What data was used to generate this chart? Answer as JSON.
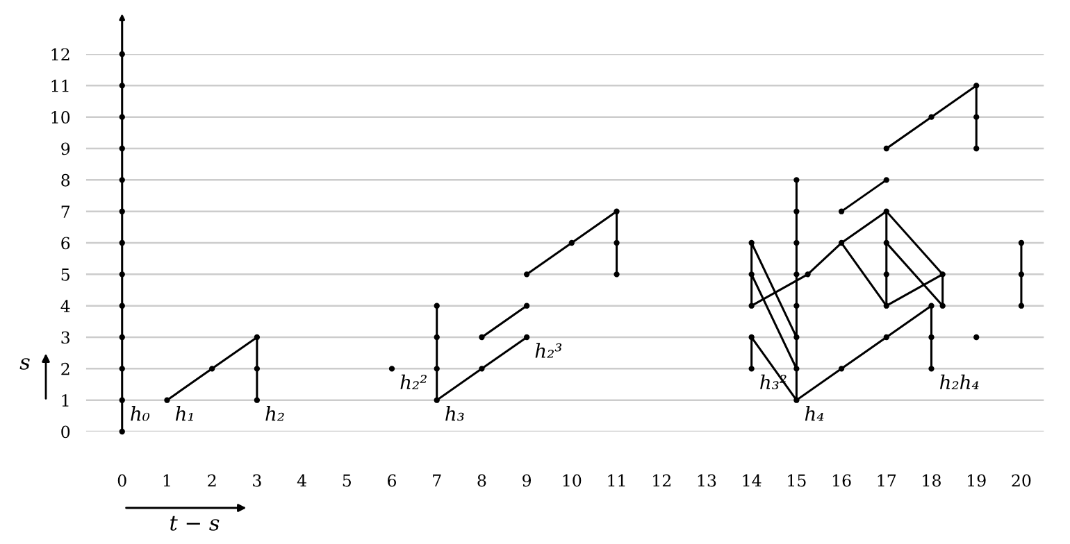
{
  "chart_data": {
    "type": "line",
    "xlabel": "t − s",
    "ylabel": "s",
    "xlim": [
      -0.8,
      20.5
    ],
    "ylim": [
      0,
      12
    ],
    "xticks": [
      0,
      1,
      2,
      3,
      4,
      5,
      6,
      7,
      8,
      9,
      10,
      11,
      12,
      13,
      14,
      15,
      16,
      17,
      18,
      19,
      20
    ],
    "yticks": [
      0,
      1,
      2,
      3,
      4,
      5,
      6,
      7,
      8,
      9,
      10,
      11,
      12
    ],
    "grid": "y",
    "legend": false,
    "marker": "none",
    "line_style": "solid",
    "series": [
      {
        "type": "scatter",
        "color": "#000000",
        "marker": "circle",
        "x": [
          0,
          0,
          0,
          0,
          0,
          0,
          0,
          0,
          0,
          0,
          0,
          0,
          0,
          1,
          2,
          3,
          3,
          3,
          6,
          7,
          7,
          7,
          7,
          8,
          8,
          9,
          9,
          9,
          10,
          11,
          11,
          11,
          14,
          14,
          14,
          14,
          14,
          15,
          15,
          15,
          15,
          15,
          15,
          15,
          15,
          15.25,
          16,
          16,
          16,
          17,
          17,
          17,
          17,
          17,
          17,
          17,
          18,
          18,
          18,
          18,
          18.25,
          18.25,
          19,
          19,
          19,
          19,
          20,
          20,
          20
        ],
        "values": [
          0,
          1,
          2,
          3,
          4,
          5,
          6,
          7,
          8,
          9,
          10,
          11,
          12,
          1,
          2,
          1,
          2,
          3,
          2,
          1,
          2,
          3,
          4,
          2,
          3,
          3,
          4,
          5,
          6,
          5,
          6,
          7,
          2,
          3,
          4,
          5,
          6,
          1,
          2,
          3,
          4,
          5,
          6,
          7,
          8,
          5,
          2,
          6,
          7,
          3,
          4,
          5,
          6,
          7,
          8,
          9,
          2,
          3,
          4,
          10,
          4,
          5,
          3,
          9,
          10,
          11,
          4,
          5,
          6
        ]
      },
      {
        "color": "#000000",
        "x": [
          0,
          0
        ],
        "values": [
          0,
          12
        ]
      },
      {
        "color": "#000000",
        "x": [
          1,
          2,
          3
        ],
        "values": [
          1,
          2,
          3
        ]
      },
      {
        "color": "#000000",
        "x": [
          3,
          3
        ],
        "values": [
          1,
          3
        ]
      },
      {
        "color": "#000000",
        "x": [
          7,
          7
        ],
        "values": [
          1,
          4
        ]
      },
      {
        "color": "#000000",
        "x": [
          7,
          8,
          9
        ],
        "values": [
          1,
          2,
          3
        ]
      },
      {
        "color": "#000000",
        "x": [
          8,
          9
        ],
        "values": [
          3,
          4
        ]
      },
      {
        "color": "#000000",
        "x": [
          9,
          10,
          11
        ],
        "values": [
          5,
          6,
          7
        ]
      },
      {
        "color": "#000000",
        "x": [
          11,
          11
        ],
        "values": [
          5,
          7
        ]
      },
      {
        "color": "#000000",
        "x": [
          14,
          14
        ],
        "values": [
          2,
          3
        ]
      },
      {
        "color": "#000000",
        "x": [
          14,
          14
        ],
        "values": [
          4,
          6
        ]
      },
      {
        "color": "#000000",
        "x": [
          14,
          15
        ],
        "values": [
          3,
          1
        ]
      },
      {
        "color": "#000000",
        "x": [
          14,
          15
        ],
        "values": [
          6,
          3
        ]
      },
      {
        "color": "#000000",
        "x": [
          14,
          15
        ],
        "values": [
          5,
          2
        ]
      },
      {
        "color": "#000000",
        "x": [
          14,
          15.25,
          16,
          17
        ],
        "values": [
          4,
          5,
          6,
          7
        ]
      },
      {
        "color": "#000000",
        "x": [
          15,
          15
        ],
        "values": [
          1,
          8
        ]
      },
      {
        "color": "#000000",
        "x": [
          15,
          16,
          17,
          18
        ],
        "values": [
          1,
          2,
          3,
          4
        ]
      },
      {
        "color": "#000000",
        "x": [
          16,
          17
        ],
        "values": [
          7,
          8
        ]
      },
      {
        "color": "#000000",
        "x": [
          17,
          18,
          19
        ],
        "values": [
          9,
          10,
          11
        ]
      },
      {
        "color": "#000000",
        "x": [
          19,
          19
        ],
        "values": [
          9,
          11
        ]
      },
      {
        "color": "#000000",
        "x": [
          16,
          17
        ],
        "values": [
          6,
          4
        ]
      },
      {
        "color": "#000000",
        "x": [
          17,
          17
        ],
        "values": [
          4,
          7
        ]
      },
      {
        "color": "#000000",
        "x": [
          17,
          18.25
        ],
        "values": [
          7,
          5
        ]
      },
      {
        "color": "#000000",
        "x": [
          17,
          18.25
        ],
        "values": [
          6,
          4
        ]
      },
      {
        "color": "#000000",
        "x": [
          17,
          18.25
        ],
        "values": [
          4,
          5
        ]
      },
      {
        "color": "#000000",
        "x": [
          18.25,
          18.25
        ],
        "values": [
          4,
          5
        ]
      },
      {
        "color": "#000000",
        "x": [
          18,
          18
        ],
        "values": [
          2,
          4
        ]
      },
      {
        "color": "#000000",
        "x": [
          20,
          20
        ],
        "values": [
          4,
          6
        ]
      }
    ],
    "annotations": [
      {
        "text": "h₀",
        "x": 0,
        "y": 1
      },
      {
        "text": "h₁",
        "x": 1,
        "y": 1
      },
      {
        "text": "h₂",
        "x": 3,
        "y": 1
      },
      {
        "text": "h₂²",
        "x": 6,
        "y": 2
      },
      {
        "text": "h₃",
        "x": 7,
        "y": 1
      },
      {
        "text": "h₂³",
        "x": 9,
        "y": 3
      },
      {
        "text": "h₃²",
        "x": 14,
        "y": 2
      },
      {
        "text": "h₄",
        "x": 15,
        "y": 1
      },
      {
        "text": "h₂h₄",
        "x": 18,
        "y": 2
      }
    ]
  }
}
